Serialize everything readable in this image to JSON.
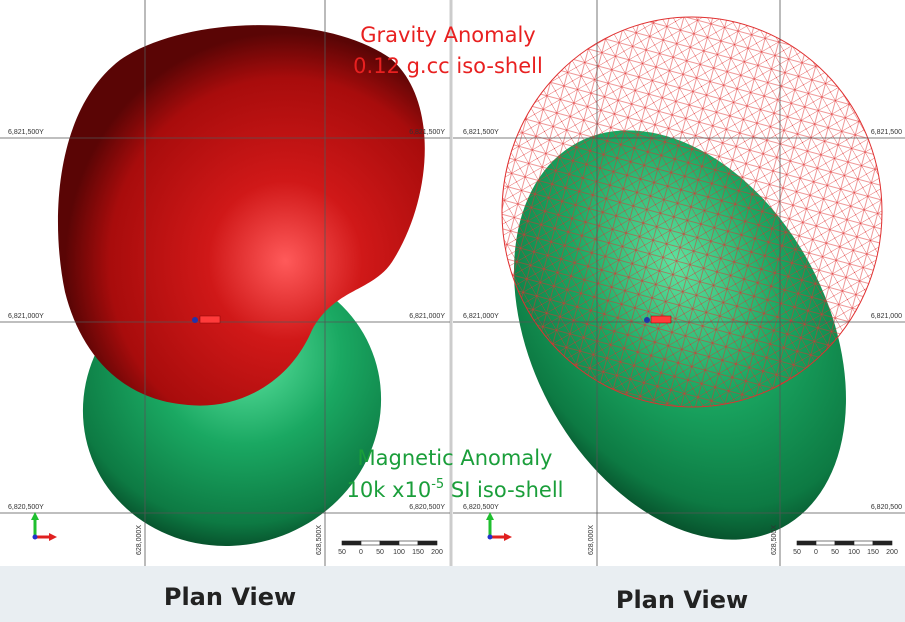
{
  "annotations": {
    "gravity": [
      "Gravity Anomaly",
      "0.12 g.cc iso-shell"
    ],
    "magnetic": {
      "line1": "Magnetic Anomaly",
      "line2_start": "10k x10",
      "superscript": "-5",
      "line2_end": " SI iso-shell"
    }
  },
  "panels": [
    {
      "y_labels_left": [
        "6,821,500Y",
        "6,821,000Y",
        "6,820,500Y"
      ],
      "y_labels_right": [
        "6,821,500Y",
        "6,821,000Y",
        "6,820,500Y"
      ],
      "x_labels": [
        "628,000X",
        "628,500X"
      ],
      "scale_labels": [
        "50",
        "0",
        "50",
        "100",
        "150",
        "200"
      ],
      "caption": "Plan View"
    },
    {
      "y_labels_left": [
        "6,821,500Y",
        "6,821,000Y",
        "6,820,500Y"
      ],
      "y_labels_right": [
        "6,821,500",
        "6,821,000",
        "6,820,500"
      ],
      "x_labels": [
        "628,000X",
        "628,500X"
      ],
      "scale_labels": [
        "50",
        "0",
        "50",
        "100",
        "150",
        "200"
      ],
      "caption": "Plan View"
    }
  ]
}
